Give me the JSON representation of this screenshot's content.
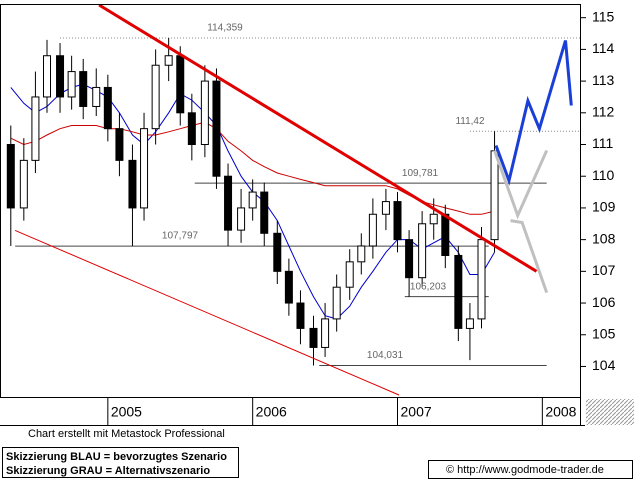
{
  "chart_data": {
    "type": "candlestick",
    "x": [
      2004.33,
      2004.42,
      2004.5,
      2004.58,
      2004.67,
      2004.75,
      2004.83,
      2004.92,
      2005,
      2005.08,
      2005.17,
      2005.25,
      2005.33,
      2005.42,
      2005.5,
      2005.58,
      2005.67,
      2005.75,
      2005.83,
      2005.92,
      2006,
      2006.08,
      2006.17,
      2006.25,
      2006.33,
      2006.42,
      2006.5,
      2006.58,
      2006.67,
      2006.75,
      2006.83,
      2006.92,
      2007,
      2007.08,
      2007.17,
      2007.25,
      2007.33,
      2007.42,
      2007.5,
      2007.58,
      2007.67
    ],
    "open": [
      111.0,
      109.0,
      110.5,
      112.5,
      113.8,
      112.5,
      113.3,
      112.2,
      112.8,
      111.5,
      110.5,
      109.0,
      111.5,
      113.5,
      113.8,
      112.0,
      111.0,
      113.0,
      110.0,
      108.3,
      109.0,
      109.5,
      108.2,
      107.0,
      106.0,
      105.2,
      104.6,
      105.5,
      106.5,
      107.3,
      107.8,
      108.8,
      109.2,
      108.0,
      106.8,
      108.5,
      108.8,
      107.5,
      105.2,
      105.5,
      108.0
    ],
    "high": [
      111.6,
      111.2,
      113.3,
      114.3,
      114.2,
      113.8,
      113.7,
      113.4,
      113.2,
      112.0,
      111.0,
      112.0,
      114.0,
      114.36,
      114.1,
      112.6,
      113.5,
      113.4,
      110.4,
      109.6,
      109.9,
      109.8,
      108.6,
      107.4,
      106.4,
      105.6,
      106.0,
      106.9,
      107.7,
      108.2,
      109.3,
      109.6,
      109.5,
      108.3,
      108.9,
      109.3,
      109.1,
      107.8,
      106.0,
      108.4,
      111.42
    ],
    "low": [
      107.8,
      108.6,
      110.1,
      112.0,
      112.0,
      112.1,
      111.8,
      111.9,
      111.1,
      110.0,
      107.8,
      108.6,
      111.0,
      113.0,
      111.6,
      110.5,
      110.6,
      109.6,
      107.8,
      107.9,
      108.6,
      107.8,
      106.6,
      105.6,
      104.7,
      104.03,
      104.3,
      105.1,
      106.1,
      106.9,
      107.4,
      108.3,
      107.6,
      106.2,
      106.5,
      108.0,
      107.1,
      104.8,
      104.2,
      105.2,
      107.6
    ],
    "close": [
      109.0,
      110.5,
      112.5,
      113.8,
      112.5,
      113.3,
      112.2,
      112.8,
      111.5,
      110.5,
      109.0,
      111.5,
      113.5,
      113.8,
      112.0,
      111.0,
      113.0,
      110.0,
      108.3,
      109.0,
      109.5,
      108.2,
      107.0,
      106.0,
      105.2,
      104.6,
      105.5,
      106.5,
      107.3,
      107.8,
      108.8,
      109.2,
      108.0,
      106.8,
      108.5,
      108.8,
      107.5,
      105.2,
      105.5,
      108.0,
      110.8
    ],
    "moving_averages": [
      {
        "color": "#0000cc",
        "values": [
          112.8,
          112.3,
          112.0,
          112.2,
          112.6,
          112.8,
          112.9,
          112.7,
          112.5,
          112.0,
          111.3,
          111.0,
          111.4,
          112.0,
          112.6,
          112.4,
          112.0,
          111.6,
          110.8,
          110.0,
          109.5,
          109.2,
          108.6,
          107.8,
          107.0,
          106.2,
          105.6,
          105.5,
          105.9,
          106.5,
          107.0,
          107.6,
          108.0,
          108.0,
          107.7,
          107.9,
          108.1,
          107.6,
          106.9,
          106.9,
          107.6
        ]
      },
      {
        "color": "#cc0000",
        "values": [
          111.2,
          111.0,
          111.1,
          111.3,
          111.5,
          111.6,
          111.6,
          111.6,
          111.5,
          111.5,
          111.4,
          111.3,
          111.3,
          111.4,
          111.5,
          111.6,
          111.7,
          111.5,
          111.1,
          110.8,
          110.5,
          110.3,
          110.1,
          110.0,
          109.9,
          109.8,
          109.7,
          109.7,
          109.7,
          109.7,
          109.7,
          109.7,
          109.6,
          109.4,
          109.2,
          109.1,
          109.0,
          108.9,
          108.8,
          108.8,
          108.9
        ]
      }
    ],
    "levels": [
      {
        "value": 114.359,
        "label": "114,359",
        "x": [
          2004.67,
          2008.26
        ],
        "style": "dotted"
      },
      {
        "value": 111.42,
        "label": "111,42",
        "x": [
          2007.5,
          2008.26
        ],
        "style": "dotted"
      },
      {
        "value": 109.781,
        "label": "109,781",
        "x": [
          2005.6,
          2008.03
        ],
        "style": "solid"
      },
      {
        "value": 107.797,
        "label": "107,797",
        "x": [
          2004.36,
          2007.63
        ],
        "style": "solid"
      },
      {
        "value": 106.203,
        "label": "106,203",
        "x": [
          2007.05,
          2007.63
        ],
        "style": "solid"
      },
      {
        "value": 104.031,
        "label": "104,031",
        "x": [
          2006.46,
          2008.03
        ],
        "style": "solid"
      }
    ],
    "trendlines": [
      {
        "color": "#e00000",
        "width": 3,
        "x": [
          2004.94,
          2007.96
        ],
        "y": [
          115.4,
          107.0
        ]
      },
      {
        "color": "#e00000",
        "width": 1,
        "x": [
          2004.36,
          2007.01
        ],
        "y": [
          108.29,
          103.1
        ]
      }
    ],
    "scenarios": [
      {
        "color": "#1a3fd6",
        "x": [
          2007.68,
          2007.77,
          2007.9,
          2007.98,
          2008.16,
          2008.2
        ],
        "y": [
          110.97,
          109.86,
          112.38,
          111.5,
          114.28,
          112.23
        ]
      },
      {
        "color": "#c0c0c0",
        "x": [
          2007.67,
          2007.83,
          2008.03
        ],
        "y": [
          110.81,
          108.76,
          110.81
        ]
      },
      {
        "color": "#c0c0c0",
        "x": [
          2007.78,
          2007.86,
          2008.03
        ],
        "y": [
          108.6,
          108.54,
          106.33
        ]
      }
    ],
    "xlim": [
      2004.29,
      2008.26
    ],
    "xticks": [
      2005,
      2006,
      2007,
      2008
    ],
    "ylim": [
      103.1,
      115.4
    ],
    "yticks": [
      104,
      105,
      106,
      107,
      108,
      109,
      110,
      111,
      112,
      113,
      114,
      115
    ],
    "note": "Chart erstellt mit Metastock Professional",
    "legend_lines": [
      "Skizzierung BLAU = bevorzugtes Szenario",
      "Skizzierung GRAU = Alternativszenario"
    ],
    "copyright": "© http://www.godmode-trader.de"
  }
}
